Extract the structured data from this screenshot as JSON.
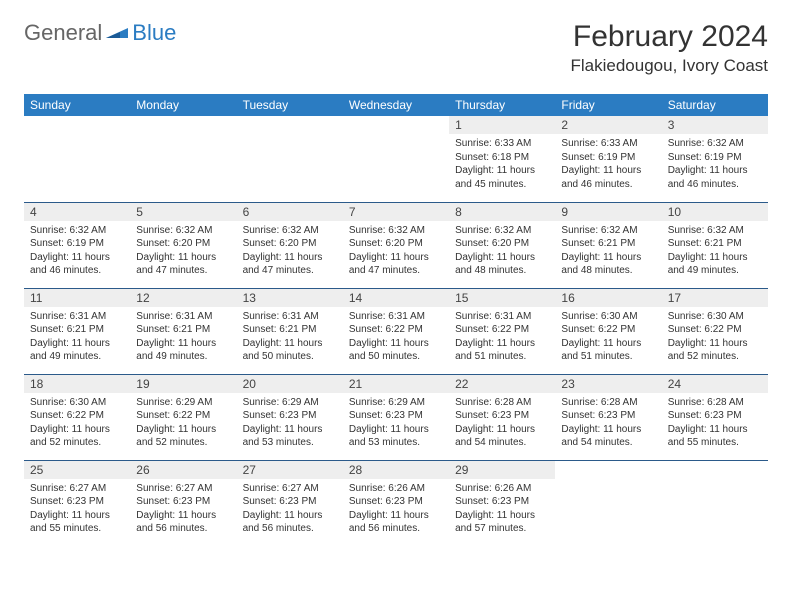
{
  "brand": {
    "part1": "General",
    "part2": "Blue"
  },
  "title": "February 2024",
  "location": "Flakiedougou, Ivory Coast",
  "colors": {
    "header_bg": "#2b7cc2",
    "header_text": "#ffffff",
    "daynum_bg": "#eeeeee",
    "cell_border": "#2b5a8a",
    "body_text": "#333333"
  },
  "day_labels": [
    "Sunday",
    "Monday",
    "Tuesday",
    "Wednesday",
    "Thursday",
    "Friday",
    "Saturday"
  ],
  "weeks": [
    [
      {
        "n": "",
        "sr": "",
        "ss": "",
        "dl1": "",
        "dl2": "",
        "empty": true
      },
      {
        "n": "",
        "sr": "",
        "ss": "",
        "dl1": "",
        "dl2": "",
        "empty": true
      },
      {
        "n": "",
        "sr": "",
        "ss": "",
        "dl1": "",
        "dl2": "",
        "empty": true
      },
      {
        "n": "",
        "sr": "",
        "ss": "",
        "dl1": "",
        "dl2": "",
        "empty": true
      },
      {
        "n": "1",
        "sr": "Sunrise: 6:33 AM",
        "ss": "Sunset: 6:18 PM",
        "dl1": "Daylight: 11 hours",
        "dl2": "and 45 minutes."
      },
      {
        "n": "2",
        "sr": "Sunrise: 6:33 AM",
        "ss": "Sunset: 6:19 PM",
        "dl1": "Daylight: 11 hours",
        "dl2": "and 46 minutes."
      },
      {
        "n": "3",
        "sr": "Sunrise: 6:32 AM",
        "ss": "Sunset: 6:19 PM",
        "dl1": "Daylight: 11 hours",
        "dl2": "and 46 minutes."
      }
    ],
    [
      {
        "n": "4",
        "sr": "Sunrise: 6:32 AM",
        "ss": "Sunset: 6:19 PM",
        "dl1": "Daylight: 11 hours",
        "dl2": "and 46 minutes."
      },
      {
        "n": "5",
        "sr": "Sunrise: 6:32 AM",
        "ss": "Sunset: 6:20 PM",
        "dl1": "Daylight: 11 hours",
        "dl2": "and 47 minutes."
      },
      {
        "n": "6",
        "sr": "Sunrise: 6:32 AM",
        "ss": "Sunset: 6:20 PM",
        "dl1": "Daylight: 11 hours",
        "dl2": "and 47 minutes."
      },
      {
        "n": "7",
        "sr": "Sunrise: 6:32 AM",
        "ss": "Sunset: 6:20 PM",
        "dl1": "Daylight: 11 hours",
        "dl2": "and 47 minutes."
      },
      {
        "n": "8",
        "sr": "Sunrise: 6:32 AM",
        "ss": "Sunset: 6:20 PM",
        "dl1": "Daylight: 11 hours",
        "dl2": "and 48 minutes."
      },
      {
        "n": "9",
        "sr": "Sunrise: 6:32 AM",
        "ss": "Sunset: 6:21 PM",
        "dl1": "Daylight: 11 hours",
        "dl2": "and 48 minutes."
      },
      {
        "n": "10",
        "sr": "Sunrise: 6:32 AM",
        "ss": "Sunset: 6:21 PM",
        "dl1": "Daylight: 11 hours",
        "dl2": "and 49 minutes."
      }
    ],
    [
      {
        "n": "11",
        "sr": "Sunrise: 6:31 AM",
        "ss": "Sunset: 6:21 PM",
        "dl1": "Daylight: 11 hours",
        "dl2": "and 49 minutes."
      },
      {
        "n": "12",
        "sr": "Sunrise: 6:31 AM",
        "ss": "Sunset: 6:21 PM",
        "dl1": "Daylight: 11 hours",
        "dl2": "and 49 minutes."
      },
      {
        "n": "13",
        "sr": "Sunrise: 6:31 AM",
        "ss": "Sunset: 6:21 PM",
        "dl1": "Daylight: 11 hours",
        "dl2": "and 50 minutes."
      },
      {
        "n": "14",
        "sr": "Sunrise: 6:31 AM",
        "ss": "Sunset: 6:22 PM",
        "dl1": "Daylight: 11 hours",
        "dl2": "and 50 minutes."
      },
      {
        "n": "15",
        "sr": "Sunrise: 6:31 AM",
        "ss": "Sunset: 6:22 PM",
        "dl1": "Daylight: 11 hours",
        "dl2": "and 51 minutes."
      },
      {
        "n": "16",
        "sr": "Sunrise: 6:30 AM",
        "ss": "Sunset: 6:22 PM",
        "dl1": "Daylight: 11 hours",
        "dl2": "and 51 minutes."
      },
      {
        "n": "17",
        "sr": "Sunrise: 6:30 AM",
        "ss": "Sunset: 6:22 PM",
        "dl1": "Daylight: 11 hours",
        "dl2": "and 52 minutes."
      }
    ],
    [
      {
        "n": "18",
        "sr": "Sunrise: 6:30 AM",
        "ss": "Sunset: 6:22 PM",
        "dl1": "Daylight: 11 hours",
        "dl2": "and 52 minutes."
      },
      {
        "n": "19",
        "sr": "Sunrise: 6:29 AM",
        "ss": "Sunset: 6:22 PM",
        "dl1": "Daylight: 11 hours",
        "dl2": "and 52 minutes."
      },
      {
        "n": "20",
        "sr": "Sunrise: 6:29 AM",
        "ss": "Sunset: 6:23 PM",
        "dl1": "Daylight: 11 hours",
        "dl2": "and 53 minutes."
      },
      {
        "n": "21",
        "sr": "Sunrise: 6:29 AM",
        "ss": "Sunset: 6:23 PM",
        "dl1": "Daylight: 11 hours",
        "dl2": "and 53 minutes."
      },
      {
        "n": "22",
        "sr": "Sunrise: 6:28 AM",
        "ss": "Sunset: 6:23 PM",
        "dl1": "Daylight: 11 hours",
        "dl2": "and 54 minutes."
      },
      {
        "n": "23",
        "sr": "Sunrise: 6:28 AM",
        "ss": "Sunset: 6:23 PM",
        "dl1": "Daylight: 11 hours",
        "dl2": "and 54 minutes."
      },
      {
        "n": "24",
        "sr": "Sunrise: 6:28 AM",
        "ss": "Sunset: 6:23 PM",
        "dl1": "Daylight: 11 hours",
        "dl2": "and 55 minutes."
      }
    ],
    [
      {
        "n": "25",
        "sr": "Sunrise: 6:27 AM",
        "ss": "Sunset: 6:23 PM",
        "dl1": "Daylight: 11 hours",
        "dl2": "and 55 minutes."
      },
      {
        "n": "26",
        "sr": "Sunrise: 6:27 AM",
        "ss": "Sunset: 6:23 PM",
        "dl1": "Daylight: 11 hours",
        "dl2": "and 56 minutes."
      },
      {
        "n": "27",
        "sr": "Sunrise: 6:27 AM",
        "ss": "Sunset: 6:23 PM",
        "dl1": "Daylight: 11 hours",
        "dl2": "and 56 minutes."
      },
      {
        "n": "28",
        "sr": "Sunrise: 6:26 AM",
        "ss": "Sunset: 6:23 PM",
        "dl1": "Daylight: 11 hours",
        "dl2": "and 56 minutes."
      },
      {
        "n": "29",
        "sr": "Sunrise: 6:26 AM",
        "ss": "Sunset: 6:23 PM",
        "dl1": "Daylight: 11 hours",
        "dl2": "and 57 minutes."
      },
      {
        "n": "",
        "sr": "",
        "ss": "",
        "dl1": "",
        "dl2": "",
        "empty": true
      },
      {
        "n": "",
        "sr": "",
        "ss": "",
        "dl1": "",
        "dl2": "",
        "empty": true
      }
    ]
  ]
}
